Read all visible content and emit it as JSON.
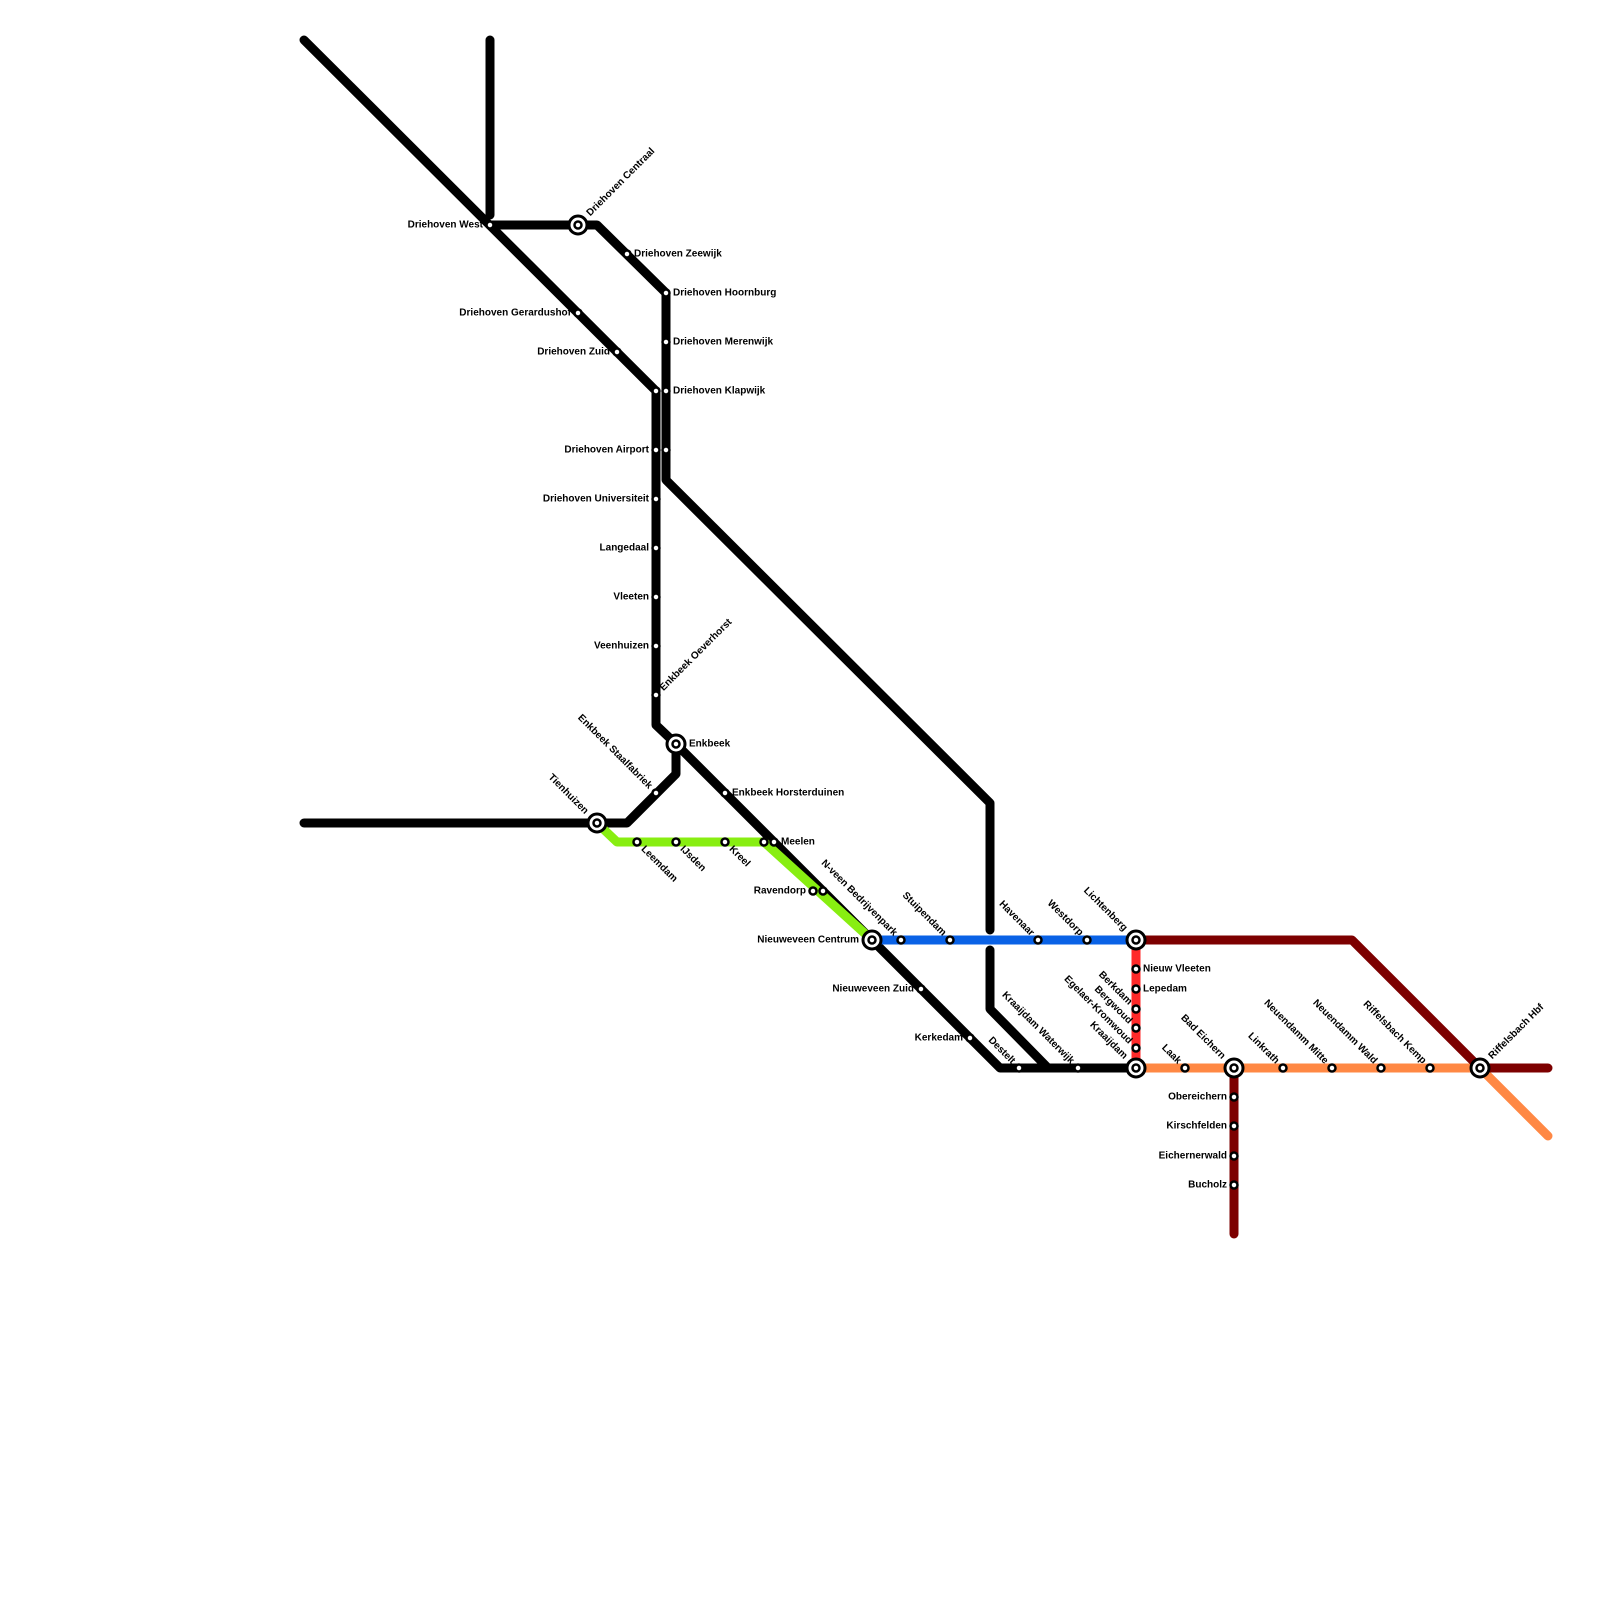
{
  "stations": [
    {
      "label": "Driehoven West"
    },
    {
      "label": "Driehoven Centraal"
    },
    {
      "label": "Driehoven Zeewijk"
    },
    {
      "label": "Driehoven Hoornburg"
    },
    {
      "label": "Driehoven Gerardushof"
    },
    {
      "label": "Driehoven Merenwijk"
    },
    {
      "label": "Driehoven Zuid"
    },
    {
      "label": "Driehoven Klapwijk"
    },
    {
      "label": "Driehoven Airport"
    },
    {
      "label": "Driehoven Universiteit"
    },
    {
      "label": "Langedaal"
    },
    {
      "label": "Vleeten"
    },
    {
      "label": "Veenhuizen"
    },
    {
      "label": "Enkbeek Oeverhorst"
    },
    {
      "label": "Enkbeek"
    },
    {
      "label": "Enkbeek Staalfabriek"
    },
    {
      "label": "Enkbeek Horsterduinen"
    },
    {
      "label": "Tienhuizen"
    },
    {
      "label": "Leemdam"
    },
    {
      "label": "IJsden"
    },
    {
      "label": "Kreel"
    },
    {
      "label": "Meelen"
    },
    {
      "label": "Ravendorp"
    },
    {
      "label": "N-veen Bedrijvenpark"
    },
    {
      "label": "Nieuweveen Centrum"
    },
    {
      "label": "Stuipendam"
    },
    {
      "label": "Havenaar"
    },
    {
      "label": "Westdorp"
    },
    {
      "label": "Lichtenberg"
    },
    {
      "label": "Nieuw Vleeten"
    },
    {
      "label": "Lepedam"
    },
    {
      "label": "Berkdam"
    },
    {
      "label": "Bergwoud"
    },
    {
      "label": "Egelaer-Kromwoud"
    },
    {
      "label": "Kraaijdam"
    },
    {
      "label": "Nieuweveen Zuid"
    },
    {
      "label": "Kerkedam"
    },
    {
      "label": "Destelt"
    },
    {
      "label": "Kraaijdam Waterwijk"
    },
    {
      "label": "Laak"
    },
    {
      "label": "Bad Eichern"
    },
    {
      "label": "Linkrath"
    },
    {
      "label": "Neuendamm Mitte"
    },
    {
      "label": "Neuendamm Wald"
    },
    {
      "label": "Riffelsbach Kemp"
    },
    {
      "label": "Riffelsbach Hbf"
    },
    {
      "label": "Obereichern"
    },
    {
      "label": "Kirschfelden"
    },
    {
      "label": "Eichernerwald"
    },
    {
      "label": "Bucholz"
    }
  ]
}
